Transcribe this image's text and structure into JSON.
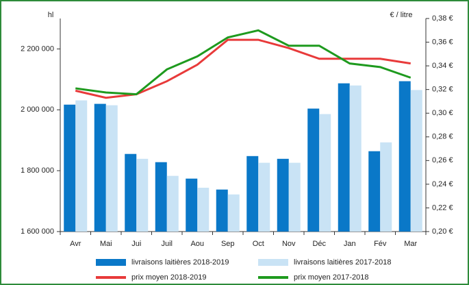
{
  "chart_data": {
    "type": "bar",
    "ylabel": "hl",
    "y2label": "€ / litre",
    "categories": [
      "Avr",
      "Mai",
      "Jui",
      "Juil",
      "Aou",
      "Sep",
      "Oct",
      "Nov",
      "Déc",
      "Jan",
      "Fév",
      "Mar"
    ],
    "series": [
      {
        "name": "livraisons laitières 2018-2019",
        "color": "#0a78c8",
        "type": "bar",
        "values": [
          2017000,
          2019600,
          1855000,
          1828000,
          1774000,
          1738000,
          1848000,
          1839000,
          2004000,
          2087000,
          1864000,
          2094000
        ]
      },
      {
        "name": "livraisons laitières 2017-2018",
        "color": "#c9e3f5",
        "type": "bar",
        "values": [
          2031000,
          2015000,
          1839000,
          1783000,
          1744000,
          1722000,
          1826000,
          1826000,
          1986000,
          2080000,
          1893000,
          2065000
        ]
      },
      {
        "name": "prix moyen 2018-2019",
        "color": "#e83a3a",
        "type": "line",
        "axis": "y2",
        "values": [
          0.319,
          0.313,
          0.316,
          0.327,
          0.341,
          0.362,
          0.362,
          0.355,
          0.346,
          0.346,
          0.346,
          0.342
        ]
      },
      {
        "name": "prix moyen 2017-2018",
        "color": "#1e9a1e",
        "type": "line",
        "axis": "y2",
        "values": [
          0.321,
          0.3175,
          0.316,
          0.337,
          0.348,
          0.364,
          0.37,
          0.357,
          0.357,
          0.342,
          0.339,
          0.33
        ]
      }
    ],
    "ylim": [
      1600000,
      2300000
    ],
    "yticks": [
      {
        "value": 1600000,
        "label": "1 600 000"
      },
      {
        "value": 1800000,
        "label": "1 800 000"
      },
      {
        "value": 2000000,
        "label": "2 000 000"
      },
      {
        "value": 2200000,
        "label": "2 200 000"
      }
    ],
    "y2lim": [
      0.2,
      0.38
    ],
    "y2ticks": [
      {
        "value": 0.2,
        "label": "0,20 €"
      },
      {
        "value": 0.22,
        "label": "0,22 €"
      },
      {
        "value": 0.24,
        "label": "0,24 €"
      },
      {
        "value": 0.26,
        "label": "0,26 €"
      },
      {
        "value": 0.28,
        "label": "0,28 €"
      },
      {
        "value": 0.3,
        "label": "0,30 €"
      },
      {
        "value": 0.32,
        "label": "0,32 €"
      },
      {
        "value": 0.34,
        "label": "0,34 €"
      },
      {
        "value": 0.36,
        "label": "0,36 €"
      },
      {
        "value": 0.38,
        "label": "0,38 €"
      }
    ],
    "grid": false
  }
}
